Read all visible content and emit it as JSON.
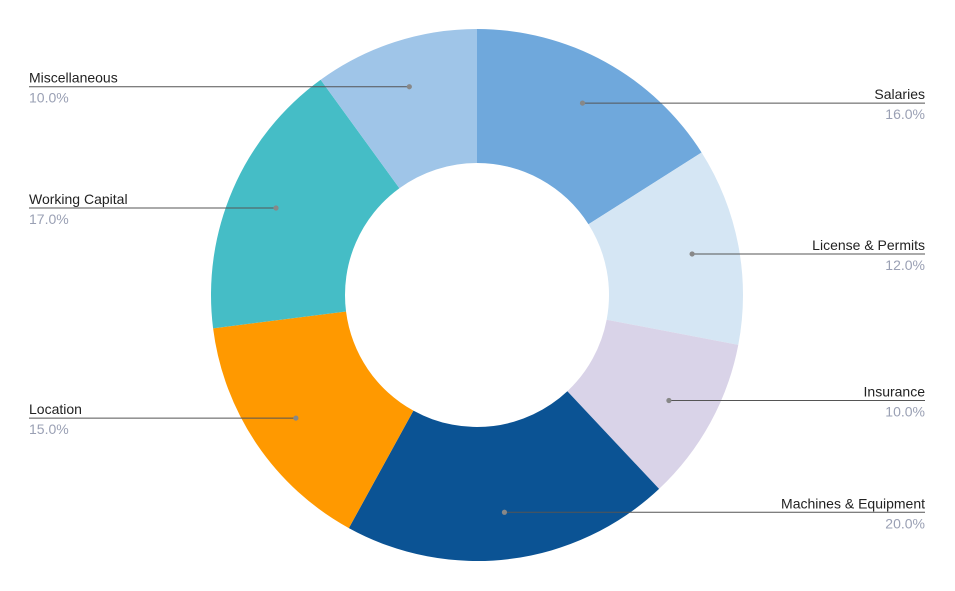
{
  "chart_data": {
    "type": "pie",
    "donut": true,
    "title": "",
    "slices": [
      {
        "label": "Salaries",
        "percent_label": "16.0%",
        "value": 16.0,
        "color": "#6fa8dc",
        "side": "right"
      },
      {
        "label": "License & Permits",
        "percent_label": "12.0%",
        "value": 12.0,
        "color": "#d5e6f4",
        "side": "right"
      },
      {
        "label": "Insurance",
        "percent_label": "10.0%",
        "value": 10.0,
        "color": "#d9d3e8",
        "side": "right"
      },
      {
        "label": "Machines & Equipment",
        "percent_label": "20.0%",
        "value": 20.0,
        "color": "#0b5394",
        "side": "right"
      },
      {
        "label": "Location",
        "percent_label": "15.0%",
        "value": 15.0,
        "color": "#ff9900",
        "side": "left"
      },
      {
        "label": "Working Capital",
        "percent_label": "17.0%",
        "value": 17.0,
        "color": "#45bdc6",
        "side": "left"
      },
      {
        "label": "Miscellaneous",
        "percent_label": "10.0%",
        "value": 10.0,
        "color": "#9fc5e8",
        "side": "left"
      }
    ],
    "legend": "none",
    "start_angle": "12 o'clock",
    "direction": "clockwise"
  }
}
